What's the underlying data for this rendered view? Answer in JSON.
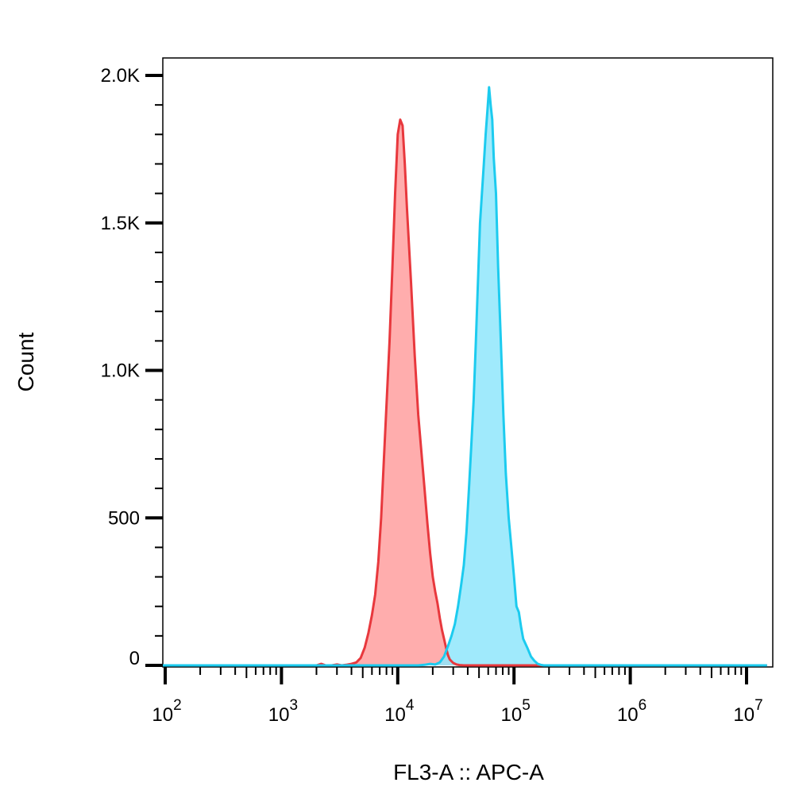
{
  "chart_data": {
    "type": "area",
    "title": "",
    "xlabel": "FL3-A :: APC-A",
    "ylabel": "Count",
    "x_scale": "log",
    "xlim": [
      60,
      15000000
    ],
    "ylim": [
      0,
      2050
    ],
    "grid": false,
    "legend": "none",
    "y_ticks": [
      {
        "value": 0,
        "label": "0"
      },
      {
        "value": 500,
        "label": "500"
      },
      {
        "value": 1000,
        "label": "1.0K"
      },
      {
        "value": 1500,
        "label": "1.5K"
      },
      {
        "value": 2000,
        "label": "2.0K"
      }
    ],
    "x_ticks": [
      {
        "value": 100,
        "base": "10",
        "exp": "2"
      },
      {
        "value": 1000,
        "base": "10",
        "exp": "3"
      },
      {
        "value": 10000,
        "base": "10",
        "exp": "4"
      },
      {
        "value": 100000,
        "base": "10",
        "exp": "5"
      },
      {
        "value": 1000000,
        "base": "10",
        "exp": "6"
      },
      {
        "value": 10000000,
        "base": "10",
        "exp": "7"
      }
    ],
    "series": [
      {
        "color": "#e8383d",
        "fill": "#ff9999",
        "x": [
          60,
          2000,
          2200,
          2400,
          2700,
          3000,
          3300,
          3600,
          4000,
          4400,
          4800,
          5200,
          5600,
          6000,
          6400,
          6800,
          7200,
          7600,
          8000,
          8500,
          9000,
          9500,
          10000,
          10500,
          11000,
          11500,
          12000,
          13000,
          14000,
          15000,
          16000,
          17000,
          18000,
          19000,
          20000,
          21000,
          22000,
          23000,
          24000,
          25000,
          26000,
          27000,
          28000,
          30000,
          32000,
          34000,
          37000,
          40000,
          15000000
        ],
        "y": [
          0,
          0,
          5,
          0,
          0,
          3,
          0,
          2,
          5,
          10,
          25,
          60,
          110,
          170,
          240,
          350,
          500,
          700,
          880,
          1100,
          1350,
          1600,
          1800,
          1850,
          1830,
          1700,
          1550,
          1300,
          1050,
          850,
          720,
          600,
          480,
          380,
          300,
          250,
          210,
          160,
          120,
          90,
          60,
          35,
          20,
          8,
          3,
          1,
          0,
          0,
          0
        ]
      },
      {
        "color": "#1ccbef",
        "fill": "#8fe6fb",
        "x": [
          60,
          15000,
          17000,
          19000,
          21000,
          23000,
          25000,
          27000,
          29000,
          31000,
          33000,
          35000,
          37000,
          39000,
          41000,
          43000,
          45000,
          47000,
          49000,
          51000,
          53000,
          55000,
          57000,
          59000,
          61000,
          63000,
          65000,
          67000,
          70000,
          73000,
          77000,
          81000,
          85000,
          90000,
          95000,
          100000,
          105000,
          110000,
          115000,
          120000,
          130000,
          140000,
          150000,
          160000,
          170000,
          180000,
          200000,
          15000000
        ],
        "y": [
          0,
          0,
          2,
          5,
          3,
          10,
          30,
          65,
          100,
          140,
          200,
          270,
          340,
          450,
          600,
          750,
          900,
          1100,
          1300,
          1500,
          1600,
          1700,
          1800,
          1880,
          1960,
          1900,
          1850,
          1720,
          1600,
          1350,
          1100,
          850,
          650,
          500,
          400,
          300,
          200,
          180,
          130,
          90,
          60,
          30,
          15,
          5,
          2,
          0,
          0,
          0
        ]
      }
    ]
  }
}
